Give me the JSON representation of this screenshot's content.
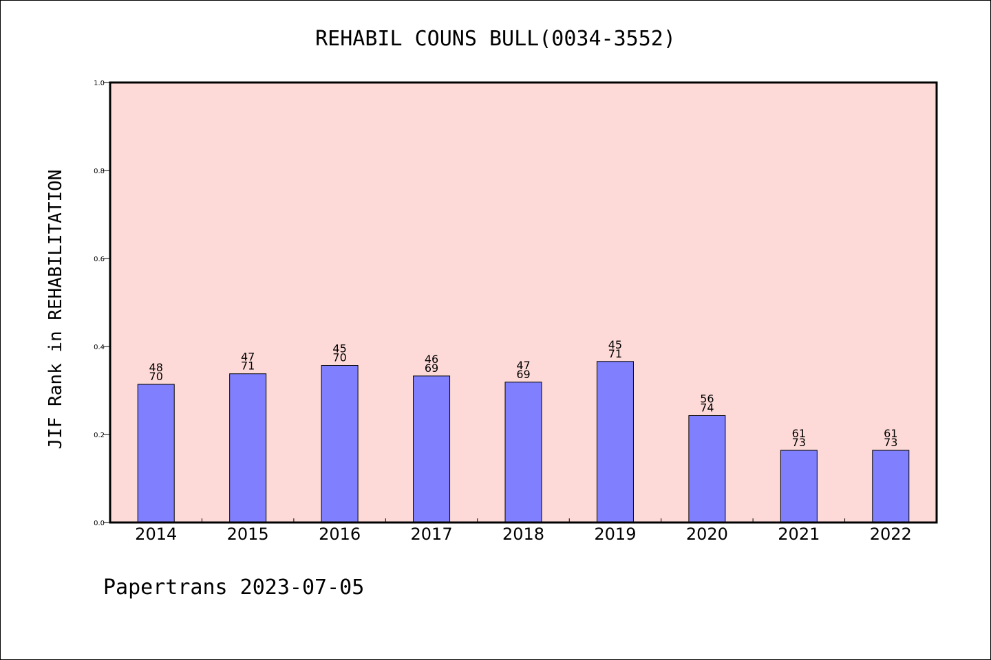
{
  "chart_data": {
    "type": "bar",
    "title": "REHABIL COUNS BULL(0034-3552)",
    "ylabel": "JIF Rank in REHABILITATION",
    "xlabel": "",
    "ylim": [
      0,
      1.0
    ],
    "yticks": [
      "0.0",
      "0.2",
      "0.4",
      "0.6",
      "0.8",
      "1.0"
    ],
    "grid": false,
    "categories": [
      "2014",
      "2015",
      "2016",
      "2017",
      "2018",
      "2019",
      "2020",
      "2021",
      "2022"
    ],
    "values": [
      0.314,
      0.338,
      0.357,
      0.333,
      0.319,
      0.366,
      0.243,
      0.164,
      0.164
    ],
    "rank_labels": [
      "48",
      "47",
      "45",
      "46",
      "47",
      "45",
      "56",
      "61",
      "61"
    ],
    "total_labels": [
      "70",
      "71",
      "70",
      "69",
      "69",
      "71",
      "74",
      "73",
      "73"
    ],
    "colors": {
      "bar": "#8080ff",
      "plot_bg": "#fddad8",
      "axis": "#000000"
    }
  },
  "footer": {
    "text": "Papertrans 2023-07-05"
  }
}
